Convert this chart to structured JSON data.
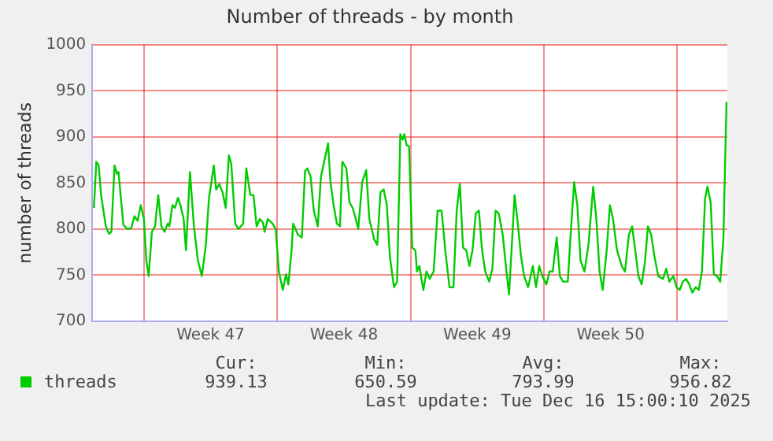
{
  "chart_data": {
    "type": "line",
    "title": "Number of threads - by month",
    "ylabel": "number of threads",
    "x": [
      "2025-11-13T09:00",
      "2025-11-13T12:00",
      "2025-11-13T15:00",
      "2025-11-13T18:00",
      "2025-11-14T00:00",
      "2025-11-14T04:00",
      "2025-11-14T07:00",
      "2025-11-14T11:00",
      "2025-11-14T14:00",
      "2025-11-14T16:00",
      "2025-11-14T22:00",
      "2025-11-15T03:00",
      "2025-11-15T08:00",
      "2025-11-15T12:00",
      "2025-11-15T16:00",
      "2025-11-15T20:00",
      "2025-11-16T00:00",
      "2025-11-16T03:00",
      "2025-11-16T06:00",
      "2025-11-16T10:00",
      "2025-11-16T14:00",
      "2025-11-16T18:00",
      "2025-11-16T22:00",
      "2025-11-17T02:00",
      "2025-11-17T06:00",
      "2025-11-17T08:00",
      "2025-11-17T12:00",
      "2025-11-17T15:00",
      "2025-11-17T19:00",
      "2025-11-17T22:00",
      "2025-11-18T02:00",
      "2025-11-18T05:00",
      "2025-11-18T10:00",
      "2025-11-18T15:00",
      "2025-11-18T20:00",
      "2025-11-19T01:00",
      "2025-11-19T06:00",
      "2025-11-19T10:00",
      "2025-11-19T13:00",
      "2025-11-19T16:00",
      "2025-11-19T19:00",
      "2025-11-19T23:00",
      "2025-11-20T03:00",
      "2025-11-20T07:00",
      "2025-11-20T11:00",
      "2025-11-20T14:00",
      "2025-11-20T19:00",
      "2025-11-20T23:00",
      "2025-11-21T05:00",
      "2025-11-21T09:00",
      "2025-11-21T14:00",
      "2025-11-21T18:00",
      "2025-11-21T22:00",
      "2025-11-22T02:00",
      "2025-11-22T06:00",
      "2025-11-22T08:00",
      "2025-11-22T12:00",
      "2025-11-22T18:00",
      "2025-11-22T22:00",
      "2025-11-23T02:00",
      "2025-11-23T07:00",
      "2025-11-23T11:00",
      "2025-11-23T14:00",
      "2025-11-23T18:00",
      "2025-11-23T20:00",
      "2025-11-24T02:00",
      "2025-11-24T07:00",
      "2025-11-24T11:00",
      "2025-11-24T14:00",
      "2025-11-24T18:00",
      "2025-11-24T22:00",
      "2025-11-25T03:00",
      "2025-11-25T07:00",
      "2025-11-25T16:00",
      "2025-11-25T19:00",
      "2025-11-25T23:00",
      "2025-11-26T03:00",
      "2025-11-26T07:00",
      "2025-11-26T10:00",
      "2025-11-26T15:00",
      "2025-11-26T19:00",
      "2025-11-26T23:00",
      "2025-11-27T02:00",
      "2025-11-27T06:00",
      "2025-11-27T11:00",
      "2025-11-27T16:00",
      "2025-11-27T20:00",
      "2025-11-28T02:00",
      "2025-11-28T06:00",
      "2025-11-28T10:00",
      "2025-11-28T14:00",
      "2025-11-28T18:00",
      "2025-11-28T22:00",
      "2025-11-29T03:00",
      "2025-11-29T07:00",
      "2025-11-29T11:00",
      "2025-11-29T14:00",
      "2025-11-29T16:00",
      "2025-11-29T19:00",
      "2025-11-29T22:00",
      "2025-11-30T02:00",
      "2025-11-30T06:00",
      "2025-11-30T08:00",
      "2025-11-30T11:00",
      "2025-11-30T16:00",
      "2025-11-30T20:00",
      "2025-12-01T00:00",
      "2025-12-01T05:00",
      "2025-12-01T10:00",
      "2025-12-01T15:00",
      "2025-12-01T20:00",
      "2025-12-02T01:00",
      "2025-12-02T06:00",
      "2025-12-02T10:00",
      "2025-12-02T14:00",
      "2025-12-02T18:00",
      "2025-12-02T22:00",
      "2025-12-03T02:00",
      "2025-12-03T06:00",
      "2025-12-03T10:00",
      "2025-12-03T14:00",
      "2025-12-03T18:00",
      "2025-12-03T22:00",
      "2025-12-04T03:00",
      "2025-12-04T07:00",
      "2025-12-04T11:00",
      "2025-12-04T15:00",
      "2025-12-04T20:00",
      "2025-12-05T00:00",
      "2025-12-05T04:00",
      "2025-12-05T11:00",
      "2025-12-05T15:00",
      "2025-12-05T19:00",
      "2025-12-05T23:00",
      "2025-12-06T04:00",
      "2025-12-06T10:00",
      "2025-12-06T14:00",
      "2025-12-06T18:00",
      "2025-12-06T22:00",
      "2025-12-07T03:00",
      "2025-12-07T07:00",
      "2025-12-07T11:00",
      "2025-12-07T16:00",
      "2025-12-07T20:00",
      "2025-12-08T00:00",
      "2025-12-08T06:00",
      "2025-12-08T10:00",
      "2025-12-08T14:00",
      "2025-12-08T18:00",
      "2025-12-08T22:00",
      "2025-12-09T03:00",
      "2025-12-09T08:00",
      "2025-12-09T14:00",
      "2025-12-09T18:00",
      "2025-12-09T22:00",
      "2025-12-10T02:00",
      "2025-12-10T07:00",
      "2025-12-10T11:00",
      "2025-12-10T15:00",
      "2025-12-10T20:00",
      "2025-12-11T02:00",
      "2025-12-11T06:00",
      "2025-12-11T11:00",
      "2025-12-11T15:00",
      "2025-12-11T19:00",
      "2025-12-11T23:00",
      "2025-12-12T03:00",
      "2025-12-12T07:00",
      "2025-12-12T11:00",
      "2025-12-12T15:00",
      "2025-12-12T19:00",
      "2025-12-13T00:00",
      "2025-12-13T06:00",
      "2025-12-13T10:00",
      "2025-12-13T14:00",
      "2025-12-13T19:00",
      "2025-12-13T23:00",
      "2025-12-14T03:00",
      "2025-12-14T07:00",
      "2025-12-14T11:00",
      "2025-12-14T15:00",
      "2025-12-14T19:00",
      "2025-12-14T23:00",
      "2025-12-15T03:00",
      "2025-12-15T07:00",
      "2025-12-15T11:00",
      "2025-12-15T14:00",
      "2025-12-15T18:00",
      "2025-12-15T22:00",
      "2025-12-16T02:00",
      "2025-12-16T06:00",
      "2025-12-16T10:00",
      "2025-12-16T14:00"
    ],
    "series": [
      {
        "name": "threads",
        "color": "#00cc00",
        "values": [
          823,
          873,
          869,
          837,
          803,
          795,
          797,
          869,
          860,
          862,
          805,
          800,
          801,
          814,
          809,
          826,
          811,
          766,
          749,
          797,
          803,
          837,
          803,
          797,
          806,
          803,
          826,
          823,
          834,
          826,
          811,
          777,
          862,
          803,
          766,
          749,
          783,
          834,
          851,
          869,
          843,
          849,
          840,
          823,
          880,
          871,
          806,
          800,
          806,
          866,
          837,
          837,
          803,
          811,
          807,
          797,
          811,
          806,
          800,
          754,
          734,
          751,
          740,
          777,
          806,
          794,
          791,
          863,
          866,
          857,
          820,
          803,
          857,
          893,
          851,
          826,
          806,
          803,
          873,
          866,
          829,
          823,
          814,
          800,
          851,
          864,
          811,
          789,
          783,
          840,
          843,
          826,
          769,
          737,
          743,
          903,
          897,
          903,
          891,
          890,
          780,
          777,
          754,
          760,
          734,
          754,
          746,
          754,
          820,
          820,
          774,
          737,
          737,
          820,
          849,
          780,
          777,
          760,
          777,
          817,
          820,
          777,
          754,
          743,
          757,
          820,
          817,
          794,
          760,
          729,
          837,
          806,
          771,
          749,
          737,
          760,
          737,
          760,
          749,
          740,
          754,
          754,
          791,
          749,
          743,
          743,
          800,
          851,
          826,
          766,
          754,
          783,
          846,
          811,
          754,
          734,
          777,
          826,
          811,
          777,
          760,
          754,
          794,
          803,
          777,
          749,
          740,
          763,
          803,
          794,
          771,
          749,
          746,
          757,
          743,
          749,
          737,
          734,
          743,
          746,
          740,
          731,
          737,
          734,
          754,
          834,
          846,
          829,
          751,
          749,
          743,
          789,
          938
        ]
      }
    ],
    "xlim": [
      "2025-11-13T07:00",
      "2025-12-16T15:00"
    ],
    "xticks": [
      {
        "value": "2025-11-16",
        "label": null
      },
      {
        "value": "2025-11-19T12:00",
        "label": "Week 47"
      },
      {
        "value": "2025-11-23",
        "label": null
      },
      {
        "value": "2025-11-26T12:00",
        "label": "Week 48"
      },
      {
        "value": "2025-11-30",
        "label": null
      },
      {
        "value": "2025-12-03T12:00",
        "label": "Week 49"
      },
      {
        "value": "2025-12-07",
        "label": null
      },
      {
        "value": "2025-12-10T12:00",
        "label": "Week 50"
      },
      {
        "value": "2025-12-14",
        "label": null
      }
    ],
    "ylim": [
      700,
      1000
    ],
    "yticks": [
      700,
      750,
      800,
      850,
      900,
      950,
      1000
    ],
    "grid": true,
    "legend": "bottom",
    "marker": "none",
    "line_style": "solid",
    "annotations": [
      "Cur:",
      "Min:",
      "Avg:",
      "Max:",
      "939.13",
      "650.59",
      "793.99",
      "956.82",
      "Last update: Tue Dec 16 15:00:10 2025"
    ]
  }
}
